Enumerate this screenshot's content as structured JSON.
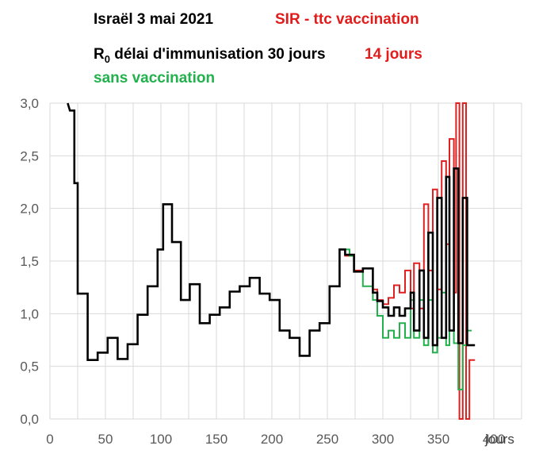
{
  "chart_data": {
    "type": "line",
    "title": {
      "line1": "Israël 3 mai 2021",
      "line1_red": "SIR - ttc vaccination",
      "line2_pre": "R",
      "line2_sub": "0",
      "line2_main": " délai d'immunisation 30 jours",
      "line2_red": "14 jours",
      "line3_green": "sans vaccination"
    },
    "xlabel": "jours",
    "ylabel": "",
    "xlim": [
      0,
      425
    ],
    "ylim": [
      0.0,
      3.0
    ],
    "x_ticks": [
      0,
      50,
      100,
      150,
      200,
      250,
      300,
      350,
      400
    ],
    "y_ticks": [
      "0,0",
      "0,5",
      "1,0",
      "1,5",
      "2,0",
      "2,5",
      "3,0"
    ],
    "y_tick_values": [
      0.0,
      0.5,
      1.0,
      1.5,
      2.0,
      2.5,
      3.0
    ],
    "grid": true,
    "colors": {
      "black": "#000000",
      "red": "#e02020",
      "green": "#22b14c",
      "grid": "#d9d9d9",
      "title_red": "#e21b1b",
      "title_green": "#22b14c"
    },
    "series": [
      {
        "color": "#000000",
        "points": [
          [
            16,
            3.0
          ],
          [
            18,
            2.93
          ],
          [
            22,
            2.93
          ],
          [
            22,
            2.24
          ],
          [
            25,
            2.24
          ],
          [
            25,
            1.19
          ],
          [
            34,
            1.19
          ],
          [
            34,
            0.56
          ],
          [
            43,
            0.56
          ],
          [
            43,
            0.63
          ],
          [
            52,
            0.63
          ],
          [
            52,
            0.77
          ],
          [
            61,
            0.77
          ],
          [
            61,
            0.57
          ],
          [
            70,
            0.57
          ],
          [
            70,
            0.71
          ],
          [
            79,
            0.71
          ],
          [
            79,
            0.99
          ],
          [
            88,
            0.99
          ],
          [
            88,
            1.26
          ],
          [
            97,
            1.26
          ],
          [
            97,
            1.61
          ],
          [
            102,
            1.61
          ],
          [
            102,
            2.04
          ],
          [
            110,
            2.04
          ],
          [
            110,
            1.68
          ],
          [
            118,
            1.68
          ],
          [
            118,
            1.13
          ],
          [
            126,
            1.13
          ],
          [
            126,
            1.28
          ],
          [
            135,
            1.28
          ],
          [
            135,
            0.91
          ],
          [
            144,
            0.91
          ],
          [
            144,
            0.99
          ],
          [
            153,
            0.99
          ],
          [
            153,
            1.06
          ],
          [
            162,
            1.06
          ],
          [
            162,
            1.21
          ],
          [
            171,
            1.21
          ],
          [
            171,
            1.26
          ],
          [
            180,
            1.26
          ],
          [
            180,
            1.34
          ],
          [
            189,
            1.34
          ],
          [
            189,
            1.19
          ],
          [
            198,
            1.19
          ],
          [
            198,
            1.13
          ],
          [
            207,
            1.13
          ],
          [
            207,
            0.84
          ],
          [
            216,
            0.84
          ],
          [
            216,
            0.77
          ],
          [
            225,
            0.77
          ],
          [
            225,
            0.6
          ],
          [
            234,
            0.6
          ],
          [
            234,
            0.84
          ],
          [
            243,
            0.84
          ],
          [
            243,
            0.91
          ],
          [
            252,
            0.91
          ],
          [
            252,
            1.26
          ],
          [
            261,
            1.26
          ],
          [
            261,
            1.61
          ],
          [
            266,
            1.61
          ],
          [
            266,
            1.56
          ],
          [
            274,
            1.56
          ],
          [
            274,
            1.4
          ],
          [
            282,
            1.4
          ],
          [
            282,
            1.43
          ],
          [
            291,
            1.43
          ],
          [
            291,
            1.2
          ],
          [
            295,
            1.2
          ],
          [
            295,
            1.12
          ],
          [
            300,
            1.12
          ],
          [
            300,
            1.06
          ],
          [
            305,
            1.06
          ],
          [
            305,
            0.98
          ],
          [
            310,
            0.98
          ],
          [
            310,
            1.06
          ],
          [
            315,
            1.06
          ],
          [
            315,
            0.98
          ],
          [
            320,
            0.98
          ],
          [
            320,
            1.05
          ],
          [
            325,
            1.05
          ],
          [
            325,
            1.2
          ],
          [
            328,
            1.2
          ],
          [
            328,
            0.84
          ],
          [
            333,
            0.84
          ],
          [
            333,
            1.41
          ],
          [
            337,
            1.41
          ],
          [
            337,
            0.77
          ],
          [
            341,
            0.77
          ],
          [
            341,
            1.77
          ],
          [
            345,
            1.77
          ],
          [
            345,
            0.7
          ],
          [
            349,
            0.7
          ],
          [
            349,
            2.1
          ],
          [
            353,
            2.1
          ],
          [
            353,
            0.77
          ],
          [
            357,
            0.77
          ],
          [
            357,
            2.3
          ],
          [
            360,
            2.3
          ],
          [
            360,
            0.84
          ],
          [
            364,
            0.84
          ],
          [
            364,
            2.38
          ],
          [
            368,
            2.38
          ],
          [
            368,
            0.72
          ],
          [
            372,
            0.72
          ],
          [
            372,
            2.1
          ],
          [
            376,
            2.1
          ],
          [
            376,
            0.7
          ],
          [
            383,
            0.7
          ]
        ]
      },
      {
        "color": "#e02020",
        "points": [
          [
            261,
            1.61
          ],
          [
            266,
            1.61
          ],
          [
            266,
            1.55
          ],
          [
            274,
            1.55
          ],
          [
            274,
            1.41
          ],
          [
            282,
            1.41
          ],
          [
            282,
            1.43
          ],
          [
            291,
            1.43
          ],
          [
            291,
            1.23
          ],
          [
            295,
            1.23
          ],
          [
            295,
            1.13
          ],
          [
            300,
            1.13
          ],
          [
            300,
            1.09
          ],
          [
            305,
            1.09
          ],
          [
            305,
            1.15
          ],
          [
            310,
            1.15
          ],
          [
            310,
            1.27
          ],
          [
            315,
            1.27
          ],
          [
            315,
            1.2
          ],
          [
            320,
            1.2
          ],
          [
            320,
            1.41
          ],
          [
            325,
            1.41
          ],
          [
            325,
            1.05
          ],
          [
            328,
            1.05
          ],
          [
            328,
            1.48
          ],
          [
            333,
            1.48
          ],
          [
            333,
            1.05
          ],
          [
            337,
            1.05
          ],
          [
            337,
            2.04
          ],
          [
            341,
            2.04
          ],
          [
            341,
            1.41
          ],
          [
            345,
            1.41
          ],
          [
            345,
            2.18
          ],
          [
            349,
            2.18
          ],
          [
            349,
            1.23
          ],
          [
            353,
            1.23
          ],
          [
            353,
            2.45
          ],
          [
            357,
            2.45
          ],
          [
            357,
            1.66
          ],
          [
            360,
            1.66
          ],
          [
            360,
            2.66
          ],
          [
            364,
            2.66
          ],
          [
            364,
            1.2
          ],
          [
            366,
            1.2
          ],
          [
            366,
            3.0
          ],
          [
            369,
            3.0
          ],
          [
            369,
            0.0
          ],
          [
            372,
            0.0
          ],
          [
            372,
            3.0
          ],
          [
            375,
            3.0
          ],
          [
            375,
            0.0
          ],
          [
            378,
            0.0
          ],
          [
            378,
            0.56
          ],
          [
            383,
            0.56
          ]
        ]
      },
      {
        "color": "#22b14c",
        "points": [
          [
            261,
            1.61
          ],
          [
            270,
            1.61
          ],
          [
            270,
            1.55
          ],
          [
            274,
            1.55
          ],
          [
            274,
            1.4
          ],
          [
            282,
            1.4
          ],
          [
            282,
            1.26
          ],
          [
            291,
            1.26
          ],
          [
            291,
            1.13
          ],
          [
            295,
            1.13
          ],
          [
            295,
            0.98
          ],
          [
            300,
            0.98
          ],
          [
            300,
            0.77
          ],
          [
            305,
            0.77
          ],
          [
            305,
            0.84
          ],
          [
            310,
            0.84
          ],
          [
            310,
            0.77
          ],
          [
            315,
            0.77
          ],
          [
            315,
            0.91
          ],
          [
            320,
            0.91
          ],
          [
            320,
            0.77
          ],
          [
            325,
            0.77
          ],
          [
            325,
            1.13
          ],
          [
            328,
            1.13
          ],
          [
            328,
            0.77
          ],
          [
            333,
            0.77
          ],
          [
            333,
            1.13
          ],
          [
            337,
            1.13
          ],
          [
            337,
            0.7
          ],
          [
            341,
            0.7
          ],
          [
            341,
            1.13
          ],
          [
            345,
            1.13
          ],
          [
            345,
            0.63
          ],
          [
            349,
            0.63
          ],
          [
            349,
            0.77
          ],
          [
            353,
            0.77
          ],
          [
            353,
            1.2
          ],
          [
            357,
            1.2
          ],
          [
            357,
            0.7
          ],
          [
            360,
            0.7
          ],
          [
            360,
            0.84
          ],
          [
            364,
            0.84
          ],
          [
            364,
            0.72
          ],
          [
            368,
            0.72
          ],
          [
            368,
            0.28
          ],
          [
            372,
            0.28
          ],
          [
            372,
            0.7
          ],
          [
            376,
            0.7
          ],
          [
            376,
            0.84
          ],
          [
            380,
            0.84
          ],
          [
            380,
            0.84
          ]
        ]
      }
    ]
  }
}
